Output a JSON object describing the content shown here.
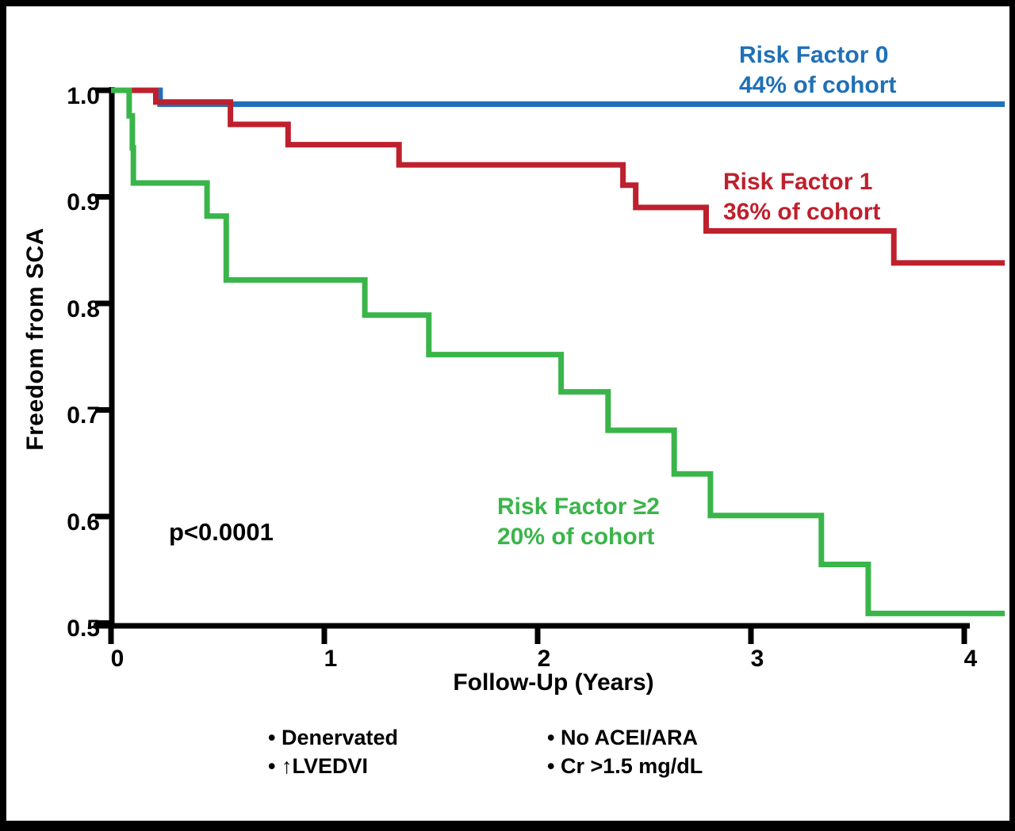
{
  "chart_data": {
    "type": "line",
    "subtype": "kaplan-meier-step",
    "title": "",
    "xlabel": "Follow-Up (Years)",
    "ylabel": "Freedom from SCA",
    "xlim": [
      0,
      4.2
    ],
    "ylim": [
      0.5,
      1.0
    ],
    "grid": false,
    "x_ticks": [
      0,
      1,
      2,
      3,
      4
    ],
    "x_tick_labels": [
      "0",
      "1",
      "2",
      "3",
      "4"
    ],
    "y_ticks": [
      1.0,
      0.9,
      0.8,
      0.7,
      0.6,
      0.5
    ],
    "y_tick_labels": [
      "1.0",
      "0.9",
      "0.8",
      "0.7",
      "0.6",
      "0.5"
    ],
    "annotation": "p<0.0001",
    "annotation_color": "#000000",
    "axis_color": "#000000",
    "series": [
      {
        "name": "Risk Factor 0",
        "cohort_label": "44% of cohort",
        "color": "#1F70B8",
        "points": [
          [
            0,
            1.0
          ],
          [
            0.23,
            1.0
          ],
          [
            0.23,
            0.987
          ],
          [
            4.19,
            0.987
          ]
        ]
      },
      {
        "name": "Risk Factor 1",
        "cohort_label": "36% of cohort",
        "color": "#BE202D",
        "points": [
          [
            0,
            1.0
          ],
          [
            0.21,
            1.0
          ],
          [
            0.21,
            0.989
          ],
          [
            0.56,
            0.989
          ],
          [
            0.56,
            0.968
          ],
          [
            0.83,
            0.968
          ],
          [
            0.83,
            0.949
          ],
          [
            1.35,
            0.949
          ],
          [
            1.35,
            0.93
          ],
          [
            2.4,
            0.93
          ],
          [
            2.4,
            0.911
          ],
          [
            2.46,
            0.911
          ],
          [
            2.46,
            0.89
          ],
          [
            2.79,
            0.89
          ],
          [
            2.79,
            0.868
          ],
          [
            3.67,
            0.868
          ],
          [
            3.67,
            0.838
          ],
          [
            4.19,
            0.838
          ]
        ]
      },
      {
        "name": "Risk Factor ≥2",
        "cohort_label": "20% of cohort",
        "color": "#3AB54A",
        "points": [
          [
            0,
            1.0
          ],
          [
            0.085,
            1.0
          ],
          [
            0.085,
            0.976
          ],
          [
            0.1,
            0.976
          ],
          [
            0.1,
            0.946
          ],
          [
            0.105,
            0.946
          ],
          [
            0.105,
            0.913
          ],
          [
            0.45,
            0.913
          ],
          [
            0.45,
            0.882
          ],
          [
            0.54,
            0.882
          ],
          [
            0.54,
            0.822
          ],
          [
            1.19,
            0.822
          ],
          [
            1.19,
            0.789
          ],
          [
            1.49,
            0.789
          ],
          [
            1.49,
            0.752
          ],
          [
            2.11,
            0.752
          ],
          [
            2.11,
            0.717
          ],
          [
            2.33,
            0.717
          ],
          [
            2.33,
            0.681
          ],
          [
            2.64,
            0.681
          ],
          [
            2.64,
            0.64
          ],
          [
            2.81,
            0.64
          ],
          [
            2.81,
            0.601
          ],
          [
            3.33,
            0.601
          ],
          [
            3.33,
            0.555
          ],
          [
            3.55,
            0.555
          ],
          [
            3.55,
            0.509
          ],
          [
            4.19,
            0.509
          ]
        ]
      }
    ]
  },
  "footnotes": {
    "col1": [
      "• Denervated",
      "• ↑LVEDVI"
    ],
    "col2": [
      "• No ACEI/ARA",
      "• Cr >1.5 mg/dL"
    ]
  }
}
